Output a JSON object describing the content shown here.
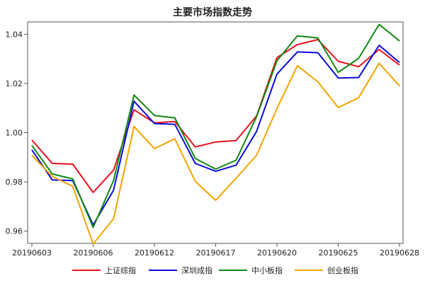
{
  "chart_data": {
    "type": "line",
    "title": "主要市场指数走势",
    "xlabel": "",
    "ylabel": "",
    "ylim": [
      0.955,
      1.045
    ],
    "yticks": [
      0.96,
      0.98,
      1.0,
      1.02,
      1.04
    ],
    "ytick_labels": [
      "0.96",
      "0.98",
      "1.00",
      "1.02",
      "1.04"
    ],
    "grid": false,
    "legend_position": "bottom",
    "x": [
      "20190603",
      "20190604",
      "20190605",
      "20190606",
      "20190610",
      "20190611",
      "20190612",
      "20190613",
      "20190614",
      "20190617",
      "20190618",
      "20190619",
      "20190620",
      "20190621",
      "20190624",
      "20190625",
      "20190626",
      "20190627",
      "20190628"
    ],
    "xtick_labels": [
      "20190603",
      "20190606",
      "20190612",
      "20190617",
      "20190620",
      "20190625",
      "20190628"
    ],
    "series": [
      {
        "name": "上证综指",
        "color": "#e8121c",
        "values": [
          0.997,
          0.9875,
          0.9872,
          0.9757,
          0.9848,
          1.0093,
          1.004,
          1.0045,
          0.9942,
          0.9962,
          0.9968,
          1.0068,
          1.0305,
          1.0358,
          1.0378,
          1.029,
          1.0268,
          1.0338,
          1.0275
        ]
      },
      {
        "name": "深圳成指",
        "color": "#0b0bdf",
        "values": [
          0.993,
          0.9808,
          0.9805,
          0.9625,
          0.9766,
          1.0128,
          1.0037,
          1.0034,
          0.9875,
          0.9843,
          0.9868,
          1.0005,
          1.0238,
          1.0328,
          1.0325,
          1.0222,
          1.0224,
          1.0355,
          1.0285
        ]
      },
      {
        "name": "中小板指",
        "color": "#118811",
        "values": [
          0.9948,
          0.9832,
          0.9812,
          0.9615,
          0.9805,
          1.0153,
          1.007,
          1.006,
          0.9895,
          0.9852,
          0.9888,
          1.0065,
          1.0292,
          1.0393,
          1.0385,
          1.0245,
          1.0302,
          1.044,
          1.0373
        ]
      },
      {
        "name": "创业板指",
        "color": "#f5a400",
        "values": [
          0.9908,
          0.9822,
          0.9782,
          0.9548,
          0.965,
          1.0025,
          0.9935,
          0.9975,
          0.9802,
          0.9725,
          0.9815,
          0.9908,
          1.0098,
          1.0272,
          1.0207,
          1.0102,
          1.0142,
          1.0282,
          1.019
        ]
      }
    ]
  }
}
